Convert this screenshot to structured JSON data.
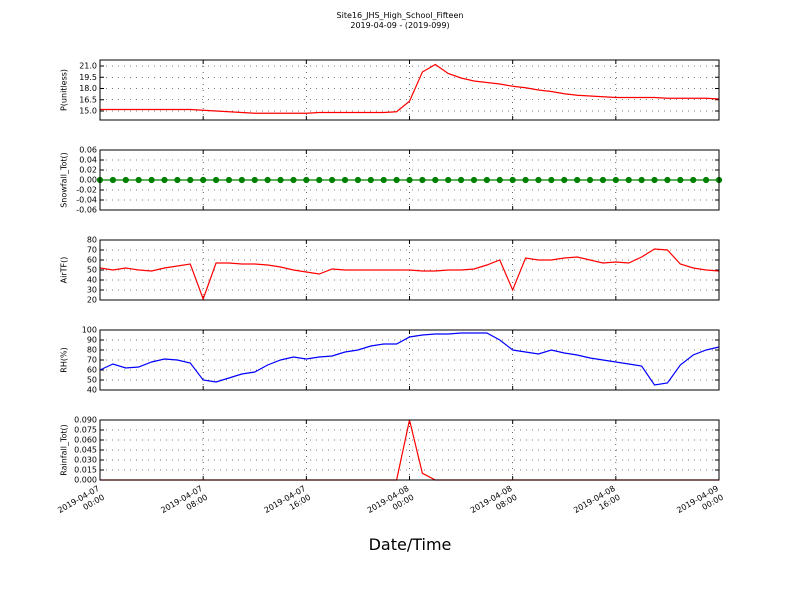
{
  "chart_data": [
    {
      "type": "line",
      "title": "Site16_JHS_High_School_Fifteen",
      "subtitle": "2019-04-09 - (2019-099)",
      "ylabel": "P(unitless)",
      "color": "#ff0000",
      "x": [
        "2019-04-07 00:00",
        "2019-04-07 01:00",
        "2019-04-07 02:00",
        "2019-04-07 03:00",
        "2019-04-07 04:00",
        "2019-04-07 05:00",
        "2019-04-07 06:00",
        "2019-04-07 07:00",
        "2019-04-07 08:00",
        "2019-04-07 09:00",
        "2019-04-07 10:00",
        "2019-04-07 11:00",
        "2019-04-07 12:00",
        "2019-04-07 13:00",
        "2019-04-07 14:00",
        "2019-04-07 15:00",
        "2019-04-07 16:00",
        "2019-04-07 17:00",
        "2019-04-07 18:00",
        "2019-04-07 19:00",
        "2019-04-07 20:00",
        "2019-04-07 21:00",
        "2019-04-07 22:00",
        "2019-04-07 23:00",
        "2019-04-08 00:00",
        "2019-04-08 01:00",
        "2019-04-08 02:00",
        "2019-04-08 03:00",
        "2019-04-08 04:00",
        "2019-04-08 05:00",
        "2019-04-08 06:00",
        "2019-04-08 07:00",
        "2019-04-08 08:00",
        "2019-04-08 09:00",
        "2019-04-08 10:00",
        "2019-04-08 11:00",
        "2019-04-08 12:00",
        "2019-04-08 13:00",
        "2019-04-08 14:00",
        "2019-04-08 15:00",
        "2019-04-08 16:00",
        "2019-04-08 17:00",
        "2019-04-08 18:00",
        "2019-04-08 19:00",
        "2019-04-08 20:00",
        "2019-04-08 21:00",
        "2019-04-08 22:00",
        "2019-04-08 23:00",
        "2019-04-09 00:00"
      ],
      "values": [
        15.2,
        15.2,
        15.2,
        15.2,
        15.2,
        15.2,
        15.2,
        15.2,
        15.1,
        15.0,
        14.9,
        14.8,
        14.7,
        14.7,
        14.7,
        14.7,
        14.7,
        14.8,
        14.8,
        14.8,
        14.8,
        14.8,
        14.8,
        14.9,
        16.3,
        20.2,
        21.2,
        20.0,
        19.4,
        19.0,
        18.8,
        18.6,
        18.3,
        18.1,
        17.8,
        17.6,
        17.3,
        17.1,
        17.0,
        16.9,
        16.8,
        16.8,
        16.8,
        16.8,
        16.7,
        16.7,
        16.7,
        16.7,
        16.6
      ],
      "xlim": [
        "2019-04-07 00:00",
        "2019-04-09 00:00"
      ],
      "xticks": [
        "2019-04-07 00:00",
        "2019-04-07 08:00",
        "2019-04-07 16:00",
        "2019-04-08 00:00",
        "2019-04-08 08:00",
        "2019-04-08 16:00",
        "2019-04-09 00:00"
      ],
      "ylim": [
        13.8,
        21.8
      ],
      "yticks": [
        {
          "value": 15,
          "label": "15.0"
        },
        {
          "value": 16.5,
          "label": "16.5"
        },
        {
          "value": 18,
          "label": "18.0"
        },
        {
          "value": 19.5,
          "label": "19.5"
        },
        {
          "value": 21,
          "label": "21.0"
        }
      ],
      "grid": true
    },
    {
      "type": "line",
      "ylabel": "Snowfall_Tot()",
      "color": "#008000",
      "markers": true,
      "x": [
        "2019-04-07 00:00",
        "2019-04-07 01:00",
        "2019-04-07 02:00",
        "2019-04-07 03:00",
        "2019-04-07 04:00",
        "2019-04-07 05:00",
        "2019-04-07 06:00",
        "2019-04-07 07:00",
        "2019-04-07 08:00",
        "2019-04-07 09:00",
        "2019-04-07 10:00",
        "2019-04-07 11:00",
        "2019-04-07 12:00",
        "2019-04-07 13:00",
        "2019-04-07 14:00",
        "2019-04-07 15:00",
        "2019-04-07 16:00",
        "2019-04-07 17:00",
        "2019-04-07 18:00",
        "2019-04-07 19:00",
        "2019-04-07 20:00",
        "2019-04-07 21:00",
        "2019-04-07 22:00",
        "2019-04-07 23:00",
        "2019-04-08 00:00",
        "2019-04-08 01:00",
        "2019-04-08 02:00",
        "2019-04-08 03:00",
        "2019-04-08 04:00",
        "2019-04-08 05:00",
        "2019-04-08 06:00",
        "2019-04-08 07:00",
        "2019-04-08 08:00",
        "2019-04-08 09:00",
        "2019-04-08 10:00",
        "2019-04-08 11:00",
        "2019-04-08 12:00",
        "2019-04-08 13:00",
        "2019-04-08 14:00",
        "2019-04-08 15:00",
        "2019-04-08 16:00",
        "2019-04-08 17:00",
        "2019-04-08 18:00",
        "2019-04-08 19:00",
        "2019-04-08 20:00",
        "2019-04-08 21:00",
        "2019-04-08 22:00",
        "2019-04-08 23:00",
        "2019-04-09 00:00"
      ],
      "values": [
        0,
        0,
        0,
        0,
        0,
        0,
        0,
        0,
        0,
        0,
        0,
        0,
        0,
        0,
        0,
        0,
        0,
        0,
        0,
        0,
        0,
        0,
        0,
        0,
        0,
        0,
        0,
        0,
        0,
        0,
        0,
        0,
        0,
        0,
        0,
        0,
        0,
        0,
        0,
        0,
        0,
        0,
        0,
        0,
        0,
        0,
        0,
        0,
        0
      ],
      "xlim": [
        "2019-04-07 00:00",
        "2019-04-09 00:00"
      ],
      "xticks": [
        "2019-04-07 00:00",
        "2019-04-07 08:00",
        "2019-04-07 16:00",
        "2019-04-08 00:00",
        "2019-04-08 08:00",
        "2019-04-08 16:00",
        "2019-04-09 00:00"
      ],
      "ylim": [
        -0.06,
        0.06
      ],
      "yticks": [
        -0.06,
        -0.04,
        -0.02,
        {
          "value": 0,
          "label": "0.00"
        },
        0.02,
        0.04,
        0.06
      ],
      "grid": true
    },
    {
      "type": "line",
      "ylabel": "AirTF()",
      "color": "#ff0000",
      "x": [
        "2019-04-07 00:00",
        "2019-04-07 01:00",
        "2019-04-07 02:00",
        "2019-04-07 03:00",
        "2019-04-07 04:00",
        "2019-04-07 05:00",
        "2019-04-07 06:00",
        "2019-04-07 07:00",
        "2019-04-07 08:00",
        "2019-04-07 09:00",
        "2019-04-07 10:00",
        "2019-04-07 11:00",
        "2019-04-07 12:00",
        "2019-04-07 13:00",
        "2019-04-07 14:00",
        "2019-04-07 15:00",
        "2019-04-07 16:00",
        "2019-04-07 17:00",
        "2019-04-07 18:00",
        "2019-04-07 19:00",
        "2019-04-07 20:00",
        "2019-04-07 21:00",
        "2019-04-07 22:00",
        "2019-04-07 23:00",
        "2019-04-08 00:00",
        "2019-04-08 01:00",
        "2019-04-08 02:00",
        "2019-04-08 03:00",
        "2019-04-08 04:00",
        "2019-04-08 05:00",
        "2019-04-08 06:00",
        "2019-04-08 07:00",
        "2019-04-08 08:00",
        "2019-04-08 09:00",
        "2019-04-08 10:00",
        "2019-04-08 11:00",
        "2019-04-08 12:00",
        "2019-04-08 13:00",
        "2019-04-08 14:00",
        "2019-04-08 15:00",
        "2019-04-08 16:00",
        "2019-04-08 17:00",
        "2019-04-08 18:00",
        "2019-04-08 19:00",
        "2019-04-08 20:00",
        "2019-04-08 21:00",
        "2019-04-08 22:00",
        "2019-04-08 23:00",
        "2019-04-09 00:00"
      ],
      "values": [
        52,
        50,
        52,
        50,
        49,
        52,
        54,
        56,
        21,
        57,
        57,
        56,
        56,
        55,
        53,
        50,
        48,
        46,
        51,
        50,
        50,
        50,
        50,
        50,
        50,
        49,
        49,
        50,
        50,
        51,
        55,
        60,
        30,
        62,
        60,
        60,
        62,
        63,
        60,
        57,
        58,
        57,
        63,
        71,
        70,
        56,
        52,
        50,
        49
      ],
      "xlim": [
        "2019-04-07 00:00",
        "2019-04-09 00:00"
      ],
      "xticks": [
        "2019-04-07 00:00",
        "2019-04-07 08:00",
        "2019-04-07 16:00",
        "2019-04-08 00:00",
        "2019-04-08 08:00",
        "2019-04-08 16:00",
        "2019-04-09 00:00"
      ],
      "ylim": [
        20,
        80
      ],
      "yticks": [
        20,
        30,
        40,
        50,
        60,
        70,
        80
      ],
      "grid": true
    },
    {
      "type": "line",
      "ylabel": "RH(%)",
      "color": "#0000ff",
      "x": [
        "2019-04-07 00:00",
        "2019-04-07 01:00",
        "2019-04-07 02:00",
        "2019-04-07 03:00",
        "2019-04-07 04:00",
        "2019-04-07 05:00",
        "2019-04-07 06:00",
        "2019-04-07 07:00",
        "2019-04-07 08:00",
        "2019-04-07 09:00",
        "2019-04-07 10:00",
        "2019-04-07 11:00",
        "2019-04-07 12:00",
        "2019-04-07 13:00",
        "2019-04-07 14:00",
        "2019-04-07 15:00",
        "2019-04-07 16:00",
        "2019-04-07 17:00",
        "2019-04-07 18:00",
        "2019-04-07 19:00",
        "2019-04-07 20:00",
        "2019-04-07 21:00",
        "2019-04-07 22:00",
        "2019-04-07 23:00",
        "2019-04-08 00:00",
        "2019-04-08 01:00",
        "2019-04-08 02:00",
        "2019-04-08 03:00",
        "2019-04-08 04:00",
        "2019-04-08 05:00",
        "2019-04-08 06:00",
        "2019-04-08 07:00",
        "2019-04-08 08:00",
        "2019-04-08 09:00",
        "2019-04-08 10:00",
        "2019-04-08 11:00",
        "2019-04-08 12:00",
        "2019-04-08 13:00",
        "2019-04-08 14:00",
        "2019-04-08 15:00",
        "2019-04-08 16:00",
        "2019-04-08 17:00",
        "2019-04-08 18:00",
        "2019-04-08 19:00",
        "2019-04-08 20:00",
        "2019-04-08 21:00",
        "2019-04-08 22:00",
        "2019-04-08 23:00",
        "2019-04-09 00:00"
      ],
      "values": [
        60,
        66,
        62,
        63,
        68,
        71,
        70,
        67,
        50,
        48,
        52,
        56,
        58,
        65,
        70,
        73,
        71,
        73,
        74,
        78,
        80,
        84,
        86,
        86,
        93,
        95,
        96,
        96,
        97,
        97,
        97,
        90,
        80,
        78,
        76,
        80,
        77,
        75,
        72,
        70,
        68,
        66,
        64,
        45,
        47,
        65,
        75,
        80,
        83
      ],
      "xlim": [
        "2019-04-07 00:00",
        "2019-04-09 00:00"
      ],
      "xticks": [
        "2019-04-07 00:00",
        "2019-04-07 08:00",
        "2019-04-07 16:00",
        "2019-04-08 00:00",
        "2019-04-08 08:00",
        "2019-04-08 16:00",
        "2019-04-09 00:00"
      ],
      "ylim": [
        40,
        100
      ],
      "yticks": [
        40,
        50,
        60,
        70,
        80,
        90,
        100
      ],
      "grid": true
    },
    {
      "type": "line",
      "ylabel": "Rainfall_Tot()",
      "xlabel": "Date/Time",
      "color": "#ff0000",
      "x": [
        "2019-04-07 00:00",
        "2019-04-07 01:00",
        "2019-04-07 02:00",
        "2019-04-07 03:00",
        "2019-04-07 04:00",
        "2019-04-07 05:00",
        "2019-04-07 06:00",
        "2019-04-07 07:00",
        "2019-04-07 08:00",
        "2019-04-07 09:00",
        "2019-04-07 10:00",
        "2019-04-07 11:00",
        "2019-04-07 12:00",
        "2019-04-07 13:00",
        "2019-04-07 14:00",
        "2019-04-07 15:00",
        "2019-04-07 16:00",
        "2019-04-07 17:00",
        "2019-04-07 18:00",
        "2019-04-07 19:00",
        "2019-04-07 20:00",
        "2019-04-07 21:00",
        "2019-04-07 22:00",
        "2019-04-07 23:00",
        "2019-04-08 00:00",
        "2019-04-08 01:00",
        "2019-04-08 02:00",
        "2019-04-08 03:00",
        "2019-04-08 04:00",
        "2019-04-08 05:00",
        "2019-04-08 06:00",
        "2019-04-08 07:00",
        "2019-04-08 08:00",
        "2019-04-08 09:00",
        "2019-04-08 10:00",
        "2019-04-08 11:00",
        "2019-04-08 12:00",
        "2019-04-08 13:00",
        "2019-04-08 14:00",
        "2019-04-08 15:00",
        "2019-04-08 16:00",
        "2019-04-08 17:00",
        "2019-04-08 18:00",
        "2019-04-08 19:00",
        "2019-04-08 20:00",
        "2019-04-08 21:00",
        "2019-04-08 22:00",
        "2019-04-08 23:00",
        "2019-04-09 00:00"
      ],
      "values": [
        0,
        0,
        0,
        0,
        0,
        0,
        0,
        0,
        0,
        0,
        0,
        0,
        0,
        0,
        0,
        0,
        0,
        0,
        0,
        0,
        0,
        0,
        0,
        0,
        0.09,
        0.01,
        0,
        0,
        0,
        0,
        0,
        0,
        0,
        0,
        0,
        0,
        0,
        0,
        0,
        0,
        0,
        0,
        0,
        0,
        0,
        0,
        0,
        0,
        0
      ],
      "xlim": [
        "2019-04-07 00:00",
        "2019-04-09 00:00"
      ],
      "xticks": [
        "2019-04-07 00:00",
        "2019-04-07 08:00",
        "2019-04-07 16:00",
        "2019-04-08 00:00",
        "2019-04-08 08:00",
        "2019-04-08 16:00",
        "2019-04-09 00:00"
      ],
      "ylim": [
        0,
        0.09
      ],
      "yticks": [
        {
          "value": 0,
          "label": "0.000"
        },
        0.015,
        {
          "value": 0.03,
          "label": "0.030"
        },
        0.045,
        {
          "value": 0.06,
          "label": "0.060"
        },
        0.075,
        {
          "value": 0.09,
          "label": "0.090"
        }
      ],
      "grid": true
    }
  ]
}
